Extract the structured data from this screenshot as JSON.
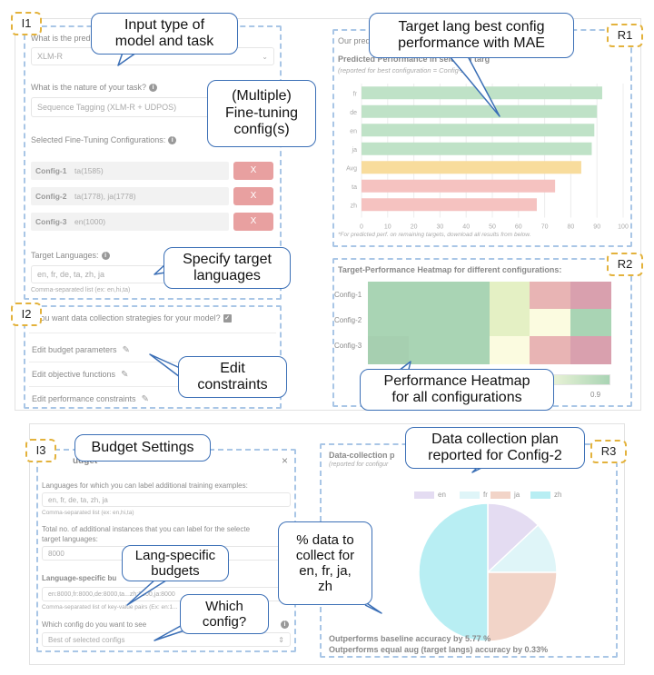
{
  "tags": {
    "i1": "I1",
    "i2": "I2",
    "i3": "I3",
    "r1": "R1",
    "r2": "R2",
    "r3": "R3"
  },
  "panel_i1": {
    "q_model": "What is the predicted ... task?",
    "model_value": "XLM-R",
    "q_task": "What is the nature of your task?",
    "task_value": "Sequence Tagging (XLM-R + UDPOS)",
    "configs_label": "Selected Fine-Tuning Configurations:",
    "configs": [
      {
        "name": "Config-1",
        "value": "ta(1585)",
        "remove": "X"
      },
      {
        "name": "Config-2",
        "value": "ta(1778), ja(1778)",
        "remove": "X"
      },
      {
        "name": "Config-3",
        "value": "en(1000)",
        "remove": "X"
      }
    ],
    "target_label": "Target Languages:",
    "target_value": "en, fr, de, ta, zh, ja",
    "target_help": "Comma-separated list (ex: en,hi,ta)"
  },
  "panel_i2": {
    "question": "you want data collection strategies for your model?",
    "items": [
      "Edit budget parameters",
      "Edit objective functions",
      "Edit performance constraints"
    ]
  },
  "panel_r1": {
    "header": "Our pred",
    "title": "Predicted Performance in selected targ",
    "subtitle": "(reported for best configuration = Config-2)",
    "footnote": "*For predicted perf. on remaining targets, download all results from below."
  },
  "panel_r2": {
    "title": "Target-Performance Heatmap for different configurations:",
    "rows": [
      "Config-1",
      "Config-2",
      "Config-3"
    ],
    "colorbar_tick": "0.9",
    "cells": [
      [
        "#a9d4b4",
        "#a9d4b4",
        "#a9d4b4",
        "#e4f0c4",
        "#e8b4b4",
        "#d9a0ae"
      ],
      [
        "#a9d4b4",
        "#a9d4b4",
        "#a9d4b4",
        "#e4f0c4",
        "#fbfbe0",
        "#a9d4b4"
      ],
      [
        "#a6cfb0",
        "#a9d4b4",
        "#a9d4b4",
        "#fbfbe0",
        "#e8b4b4",
        "#d9a0ae"
      ]
    ]
  },
  "panel_i3": {
    "title": "udget",
    "close": "×",
    "q_langs": "Languages for which you can label additional training examples:",
    "langs_value": "en, fr, de, ta, zh, ja",
    "langs_help": "Comma-separated list (ex: en,hi,ta)",
    "q_total_1": "Total no. of additional instances that you can label for the selecte",
    "q_total_2": "target languages:",
    "total_value": "8000",
    "q_specific": "Language-specific bu",
    "specific_value": "en:8000,fr:8000,de:8000,ta...zh:8000,ja:8000",
    "specific_help": "Comma-separated list of key-value pairs (Ex: en:1...",
    "q_config": "Which config do you want to see",
    "config_value": "Best of selected configs"
  },
  "panel_r3": {
    "title": "Data-collection p",
    "subtitle": "(reported for configur",
    "legend": [
      {
        "label": "en",
        "color": "#e4dcf2"
      },
      {
        "label": "fr",
        "color": "#dff5f8"
      },
      {
        "label": "ja",
        "color": "#f2d4c8"
      },
      {
        "label": "zh",
        "color": "#b8eef3"
      }
    ],
    "line1": "Outperforms baseline accuracy by 5.77 %",
    "line2": "Outperforms equal aug (target langs) accuracy by 0.33%"
  },
  "callouts": {
    "input_type": "Input type of\nmodel and task",
    "finetune": "(Multiple)\nFine-tuning\nconfig(s)",
    "target_langs": "Specify target\nlanguages",
    "constraints": "Edit\nconstraints",
    "best_config": "Target lang best config\nperformance with MAE",
    "heatmap": "Performance Heatmap\nfor all configurations",
    "budget": "Budget Settings",
    "lang_budgets": "Lang-specific\nbudgets",
    "which_config": "Which\nconfig?",
    "plan": "Data collection plan\nreported for Config-2",
    "pct": "% data to\ncollect for\nen, fr, ja,\nzh"
  },
  "chart_data": [
    {
      "type": "bar",
      "orientation": "horizontal",
      "categories": [
        "fr",
        "de",
        "en",
        "ja",
        "Avg",
        "ta",
        "zh"
      ],
      "values": [
        92,
        90,
        89,
        88,
        84,
        74,
        67
      ],
      "colors": [
        "#bfe2c7",
        "#bfe2c7",
        "#bfe2c7",
        "#bfe2c7",
        "#f8dc9c",
        "#f5c2c0",
        "#f5c2c0"
      ],
      "xticks": [
        0,
        10,
        20,
        30,
        40,
        50,
        60,
        70,
        80,
        90,
        100
      ],
      "xlim": [
        0,
        100
      ]
    },
    {
      "type": "pie",
      "labels": [
        "en",
        "fr",
        "ja",
        "zh"
      ],
      "values": [
        13,
        12,
        25,
        50
      ],
      "colors": [
        "#e4dcf2",
        "#dff5f8",
        "#f2d4c8",
        "#b8eef3"
      ]
    }
  ]
}
